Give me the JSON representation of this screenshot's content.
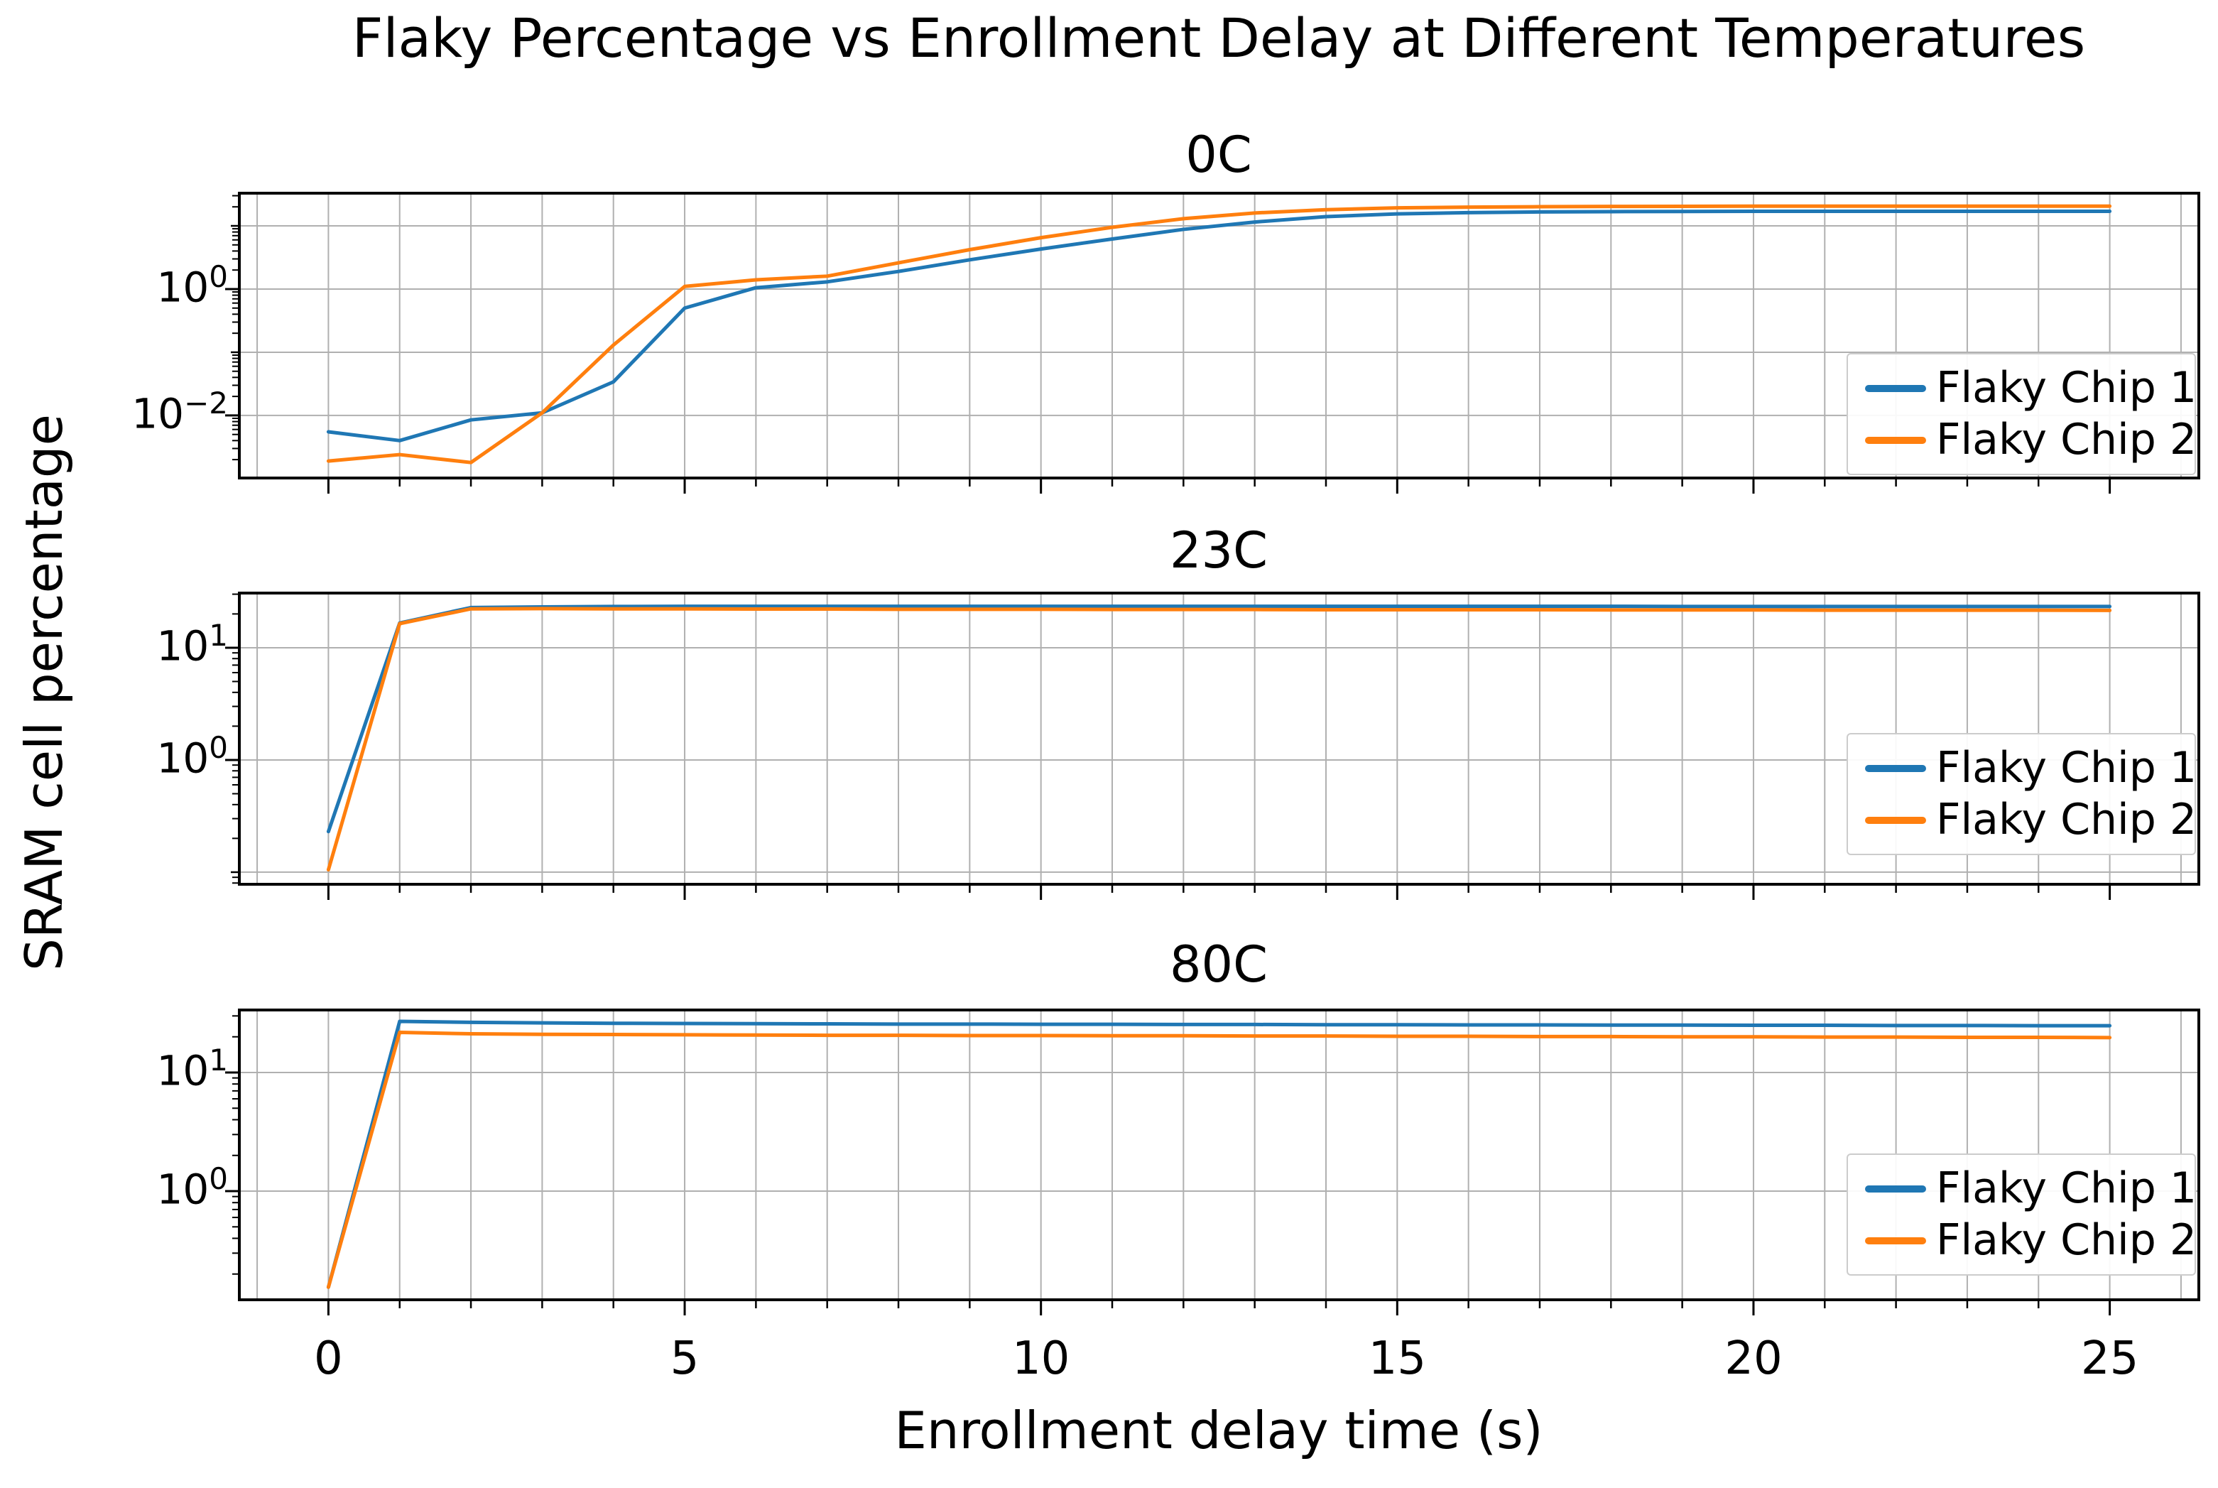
{
  "figure": {
    "title": "Flaky Percentage vs Enrollment Delay at Different Temperatures",
    "xlabel": "Enrollment delay time (s)",
    "ylabel": "SRAM cell percentage",
    "legend_labels": [
      "Flaky Chip 1",
      "Flaky Chip 2"
    ],
    "colors": {
      "chip1": "#1f77b4",
      "chip2": "#ff7f0e",
      "grid": "#b0b0b0",
      "spine": "#000000",
      "legend_border": "#cccccc",
      "text": "#000000"
    }
  },
  "axes": {
    "xlim": [
      -1.25,
      26.25
    ],
    "x_gridlines_every": 1,
    "x_major_ticks": [
      0,
      5,
      10,
      15,
      20,
      25
    ],
    "x_tick_labels": [
      "0",
      "5",
      "10",
      "15",
      "20",
      "25"
    ],
    "grid": true,
    "legend_location": "lower right"
  },
  "chart_data": [
    {
      "type": "line",
      "title": "0C",
      "yscale": "log",
      "ylim_log": [
        -2.99,
        1.517
      ],
      "grid_decades": [
        1,
        0,
        -1,
        -2
      ],
      "yticks": [
        {
          "exp": 0,
          "label": "10^0"
        },
        {
          "exp": -2,
          "label": "10^-2"
        }
      ],
      "x": [
        0,
        1,
        2,
        3,
        4,
        5,
        6,
        7,
        8,
        9,
        10,
        11,
        12,
        13,
        14,
        15,
        16,
        17,
        18,
        19,
        20,
        21,
        22,
        23,
        24,
        25
      ],
      "series": [
        {
          "name": "Flaky Chip 1",
          "color": "#1f77b4",
          "values": [
            0.0055,
            0.004,
            0.0085,
            0.011,
            0.034,
            0.5,
            1.05,
            1.3,
            1.9,
            2.9,
            4.3,
            6.2,
            8.8,
            11.5,
            14.0,
            15.5,
            16.2,
            16.6,
            16.8,
            16.9,
            17.0,
            17.0,
            17.0,
            17.0,
            17.0,
            17.0
          ]
        },
        {
          "name": "Flaky Chip 2",
          "color": "#ff7f0e",
          "values": [
            0.0019,
            0.0024,
            0.0018,
            0.011,
            0.13,
            1.1,
            1.4,
            1.6,
            2.6,
            4.2,
            6.5,
            9.5,
            13.0,
            16.0,
            18.0,
            19.3,
            19.8,
            20.1,
            20.3,
            20.4,
            20.5,
            20.5,
            20.5,
            20.5,
            20.5,
            20.5
          ]
        }
      ]
    },
    {
      "type": "line",
      "title": "23C",
      "yscale": "log",
      "ylim_log": [
        -1.108,
        1.487
      ],
      "grid_decades": [
        1,
        0,
        -1
      ],
      "yticks": [
        {
          "exp": 1,
          "label": "10^1"
        },
        {
          "exp": 0,
          "label": "10^0"
        }
      ],
      "x": [
        0,
        1,
        2,
        3,
        4,
        5,
        6,
        7,
        8,
        9,
        10,
        11,
        12,
        13,
        14,
        15,
        16,
        17,
        18,
        19,
        20,
        21,
        22,
        23,
        24,
        25
      ],
      "series": [
        {
          "name": "Flaky Chip 1",
          "color": "#1f77b4",
          "values": [
            0.23,
            16.6,
            22.8,
            23.1,
            23.3,
            23.4,
            23.4,
            23.4,
            23.4,
            23.4,
            23.4,
            23.4,
            23.4,
            23.4,
            23.4,
            23.4,
            23.4,
            23.4,
            23.4,
            23.3,
            23.3,
            23.3,
            23.3,
            23.3,
            23.3,
            23.3
          ]
        },
        {
          "name": "Flaky Chip 2",
          "color": "#ff7f0e",
          "values": [
            0.105,
            16.4,
            22.2,
            22.3,
            22.2,
            22.2,
            22.1,
            22.1,
            22.0,
            22.0,
            22.0,
            21.9,
            21.9,
            21.9,
            21.8,
            21.8,
            21.8,
            21.8,
            21.7,
            21.7,
            21.7,
            21.6,
            21.6,
            21.6,
            21.6,
            21.5
          ]
        }
      ]
    },
    {
      "type": "line",
      "title": "80C",
      "yscale": "log",
      "ylim_log": [
        -0.916,
        1.527
      ],
      "grid_decades": [
        1,
        0
      ],
      "yticks": [
        {
          "exp": 1,
          "label": "10^1"
        },
        {
          "exp": 0,
          "label": "10^0"
        }
      ],
      "x": [
        0,
        1,
        2,
        3,
        4,
        5,
        6,
        7,
        8,
        9,
        10,
        11,
        12,
        13,
        14,
        15,
        16,
        17,
        18,
        19,
        20,
        21,
        22,
        23,
        24,
        25
      ],
      "series": [
        {
          "name": "Flaky Chip 1",
          "color": "#1f77b4",
          "values": [
            0.155,
            27.0,
            26.5,
            26.2,
            26.0,
            25.9,
            25.8,
            25.7,
            25.6,
            25.6,
            25.5,
            25.5,
            25.4,
            25.4,
            25.3,
            25.3,
            25.2,
            25.2,
            25.1,
            25.1,
            25.0,
            25.0,
            24.9,
            24.9,
            24.8,
            24.8
          ]
        },
        {
          "name": "Flaky Chip 2",
          "color": "#ff7f0e",
          "values": [
            0.155,
            21.8,
            21.2,
            21.0,
            20.9,
            20.8,
            20.7,
            20.6,
            20.6,
            20.5,
            20.5,
            20.4,
            20.4,
            20.3,
            20.3,
            20.2,
            20.2,
            20.1,
            20.1,
            20.0,
            20.0,
            19.9,
            19.9,
            19.8,
            19.8,
            19.7
          ]
        }
      ]
    }
  ]
}
